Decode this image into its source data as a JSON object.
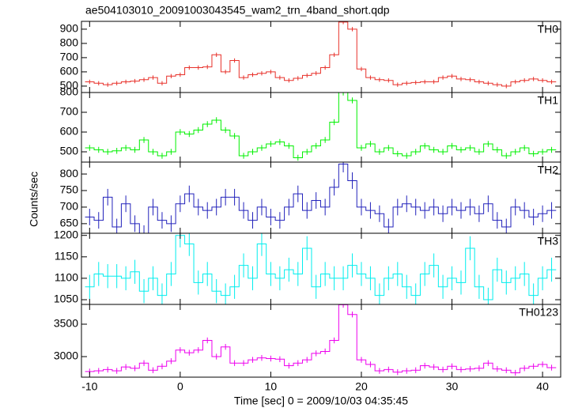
{
  "title": "ae504103010_20091003043545_wam2_trn_4band_short.qdp",
  "xlabel": "Time [sec] 0 = 2009/10/03 04:35:45",
  "ylabel": "Counts/sec",
  "chart_data": [
    {
      "type": "step",
      "name": "TH0",
      "color": "#e8312a",
      "x": [
        -10,
        -9,
        -8,
        -7,
        -6,
        -5,
        -4,
        -3,
        -2,
        -1,
        0,
        1,
        2,
        3,
        4,
        5,
        6,
        7,
        8,
        9,
        10,
        11,
        12,
        13,
        14,
        15,
        16,
        17,
        18,
        19,
        20,
        21,
        22,
        23,
        24,
        25,
        26,
        27,
        28,
        29,
        30,
        31,
        32,
        33,
        34,
        35,
        36,
        37,
        38,
        39,
        40,
        41
      ],
      "values": [
        530,
        520,
        510,
        520,
        530,
        535,
        545,
        560,
        520,
        570,
        580,
        630,
        630,
        635,
        720,
        600,
        680,
        560,
        580,
        590,
        600,
        560,
        540,
        555,
        575,
        590,
        630,
        720,
        950,
        900,
        620,
        560,
        545,
        540,
        510,
        520,
        525,
        530,
        530,
        560,
        570,
        550,
        545,
        530,
        520,
        510,
        500,
        530,
        540,
        550,
        540,
        530
      ],
      "error": 15,
      "xlim": [
        -10.9,
        42
      ],
      "xticks": [
        -10,
        0,
        10,
        20,
        30,
        40
      ],
      "ylim": [
        455,
        955
      ],
      "yticks": [
        500,
        600,
        700,
        800,
        900
      ]
    },
    {
      "type": "step",
      "name": "TH1",
      "color": "#00f000",
      "x": [
        -10,
        -9,
        -8,
        -7,
        -6,
        -5,
        -4,
        -3,
        -2,
        -1,
        0,
        1,
        2,
        3,
        4,
        5,
        6,
        7,
        8,
        9,
        10,
        11,
        12,
        13,
        14,
        15,
        16,
        17,
        18,
        19,
        20,
        21,
        22,
        23,
        24,
        25,
        26,
        27,
        28,
        29,
        30,
        31,
        32,
        33,
        34,
        35,
        36,
        37,
        38,
        39,
        40,
        41
      ],
      "values": [
        520,
        510,
        500,
        505,
        520,
        510,
        560,
        500,
        480,
        500,
        600,
        590,
        610,
        640,
        660,
        610,
        580,
        480,
        500,
        520,
        540,
        550,
        530,
        470,
        500,
        530,
        560,
        650,
        800,
        760,
        520,
        540,
        500,
        520,
        490,
        480,
        500,
        530,
        510,
        500,
        530,
        510,
        520,
        500,
        540,
        510,
        480,
        500,
        520,
        490,
        500,
        510
      ],
      "error": 15,
      "xlim": [
        -10.9,
        42
      ],
      "xticks": [
        -10,
        0,
        10,
        20,
        30,
        40
      ],
      "ylim": [
        448,
        800
      ],
      "yticks": [
        500,
        600,
        700,
        800
      ]
    },
    {
      "type": "step",
      "name": "TH2",
      "color": "#2222bb",
      "x": [
        -10,
        -9,
        -8,
        -7,
        -6,
        -5,
        -4,
        -3,
        -2,
        -1,
        0,
        1,
        2,
        3,
        4,
        5,
        6,
        7,
        8,
        9,
        10,
        11,
        12,
        13,
        14,
        15,
        16,
        17,
        18,
        19,
        20,
        21,
        22,
        23,
        24,
        25,
        26,
        27,
        28,
        29,
        30,
        31,
        32,
        33,
        34,
        35,
        36,
        37,
        38,
        39,
        40,
        41
      ],
      "values": [
        670,
        660,
        730,
        640,
        710,
        650,
        620,
        700,
        660,
        650,
        710,
        740,
        700,
        690,
        700,
        730,
        730,
        690,
        660,
        700,
        670,
        660,
        700,
        740,
        690,
        720,
        700,
        760,
        830,
        780,
        700,
        690,
        680,
        640,
        700,
        710,
        700,
        690,
        700,
        680,
        700,
        690,
        700,
        680,
        710,
        660,
        640,
        700,
        690,
        670,
        680,
        690
      ],
      "error": 25,
      "xlim": [
        -10.9,
        42
      ],
      "xticks": [
        -10,
        0,
        10,
        20,
        30,
        40
      ],
      "ylim": [
        621,
        836
      ],
      "yticks": [
        650,
        700,
        750,
        800
      ]
    },
    {
      "type": "step",
      "name": "TH3",
      "color": "#00eeee",
      "x": [
        -10,
        -9,
        -8,
        -7,
        -6,
        -5,
        -4,
        -3,
        -2,
        -1,
        0,
        1,
        2,
        3,
        4,
        5,
        6,
        7,
        8,
        9,
        10,
        11,
        12,
        13,
        14,
        15,
        16,
        17,
        18,
        19,
        20,
        21,
        22,
        23,
        24,
        25,
        26,
        27,
        28,
        29,
        30,
        31,
        32,
        33,
        34,
        35,
        36,
        37,
        38,
        39,
        40,
        41
      ],
      "values": [
        1080,
        1110,
        1105,
        1105,
        1100,
        1115,
        1070,
        1100,
        1060,
        1110,
        1200,
        1180,
        1090,
        1110,
        1070,
        1060,
        1080,
        1130,
        1100,
        1180,
        1110,
        1100,
        1120,
        1110,
        1170,
        1080,
        1110,
        1100,
        1100,
        1130,
        1110,
        1100,
        1060,
        1100,
        1110,
        1080,
        1060,
        1110,
        1130,
        1080,
        1100,
        1090,
        1170,
        1080,
        1050,
        1120,
        1090,
        1100,
        1110,
        1060,
        1100,
        1120
      ],
      "error": 28,
      "xlim": [
        -10.9,
        42
      ],
      "xticks": [
        -10,
        0,
        10,
        20,
        30,
        40
      ],
      "ylim": [
        1039,
        1205
      ],
      "yticks": [
        1050,
        1100,
        1150,
        1200
      ]
    },
    {
      "type": "step",
      "name": "TH0123",
      "color": "#ee00ee",
      "x": [
        -10,
        -9,
        -8,
        -7,
        -6,
        -5,
        -4,
        -3,
        -2,
        -1,
        0,
        1,
        2,
        3,
        4,
        5,
        6,
        7,
        8,
        9,
        10,
        11,
        12,
        13,
        14,
        15,
        16,
        17,
        18,
        19,
        20,
        21,
        22,
        23,
        24,
        25,
        26,
        27,
        28,
        29,
        30,
        31,
        32,
        33,
        34,
        35,
        36,
        37,
        38,
        39,
        40,
        41
      ],
      "values": [
        2770,
        2780,
        2800,
        2780,
        2840,
        2820,
        2900,
        2790,
        2850,
        2930,
        3100,
        3060,
        3100,
        3250,
        3000,
        3150,
        2900,
        2900,
        2950,
        2980,
        2970,
        2960,
        2860,
        2900,
        2950,
        3050,
        3080,
        3250,
        3800,
        3650,
        2950,
        2880,
        2780,
        2800,
        2760,
        2780,
        2790,
        2860,
        2840,
        2800,
        2850,
        2800,
        2810,
        2820,
        2900,
        2810,
        2790,
        2750,
        2820,
        2850,
        2880,
        2830
      ],
      "error": 45,
      "xlim": [
        -10.9,
        42
      ],
      "xticks": [
        -10,
        0,
        10,
        20,
        30,
        40
      ],
      "ylim": [
        2683,
        3805
      ],
      "yticks": [
        3000,
        3500
      ]
    }
  ]
}
